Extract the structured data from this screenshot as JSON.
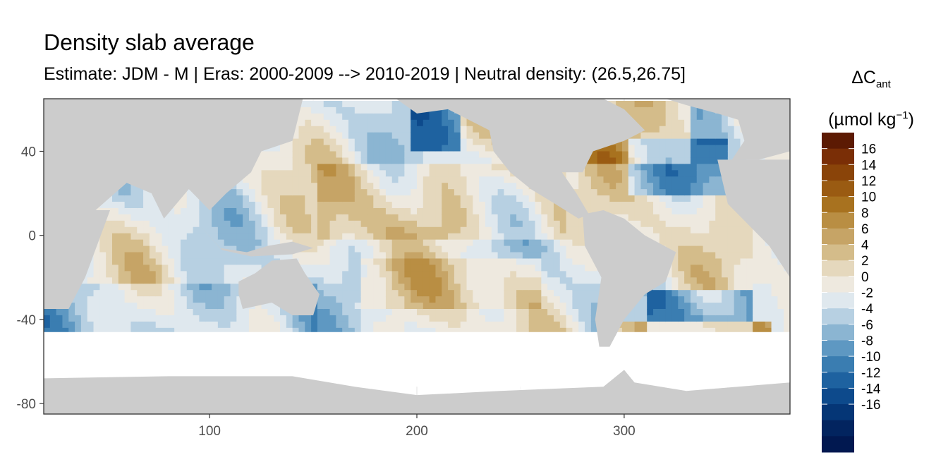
{
  "chart_data": {
    "type": "heatmap",
    "title": "Density slab average",
    "subtitle": "Estimate: JDM - M | Eras: 2000-2009 --> 2010-2019 | Neutral density: (26.5,26.75]",
    "legend_title_main": "ΔC",
    "legend_title_sub": "ant",
    "legend_unit_main": "(µmol kg",
    "legend_unit_sup": "−1",
    "legend_unit_close": ")",
    "xlim": [
      20,
      380
    ],
    "ylim": [
      -85,
      65
    ],
    "x_ticks": [
      100,
      200,
      300
    ],
    "y_ticks": [
      40,
      0,
      -40,
      -80
    ],
    "legend_breaks": [
      16,
      14,
      12,
      10,
      8,
      6,
      4,
      2,
      0,
      -2,
      -4,
      -6,
      -8,
      -10,
      -12,
      -14,
      -16
    ],
    "legend_colors": [
      "#5c1a03",
      "#7a2e06",
      "#8a4409",
      "#9a5b12",
      "#a8721f",
      "#b98e43",
      "#c6a466",
      "#d4bc8a",
      "#e5d8bd",
      "#eee9df",
      "#dfe8ee",
      "#b7d0e2",
      "#8bb5d2",
      "#5e98c2",
      "#3a7db1",
      "#1e62a0",
      "#0d4a8c",
      "#053676",
      "#02245f",
      "#011850"
    ],
    "land_color": "#cccccc",
    "missing_color": "#ffffff",
    "panel_background": "#ffffff",
    "grid": true,
    "legend_position": "right"
  }
}
